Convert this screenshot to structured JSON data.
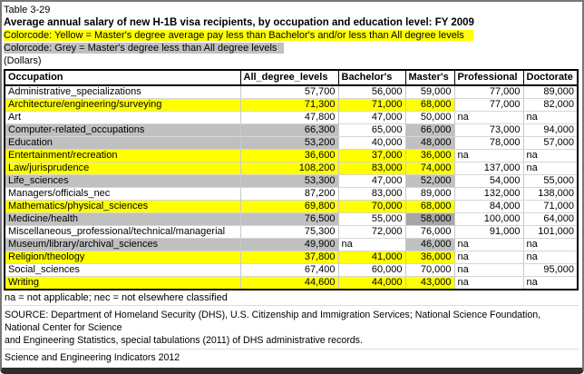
{
  "header": {
    "table_label": "Table 3-29",
    "title": "Average annual salary of new H-1B visa recipients, by occupation and education level: FY 2009",
    "colorcode_yellow": "Colorcode: Yellow = Master's degree average pay less than Bachelor's and/or less than All degree levels",
    "colorcode_grey": "Colorcode: Grey = Master's degree less than All degree levels",
    "units": "(Dollars)"
  },
  "colors": {
    "highlight_yellow": "#ffff00",
    "highlight_grey": "#c0c0c0",
    "highlight_dark_grey": "#a6a6a6"
  },
  "table": {
    "columns": [
      "Occupation",
      "All_degree_levels",
      "Bachelor's",
      "Master's",
      "Professional",
      "Doctorate"
    ],
    "rows": [
      {
        "occupation": "Administrative_specializations",
        "values": [
          "57,700",
          "56,000",
          "59,000",
          "77,000",
          "89,000"
        ],
        "bg": [
          "none",
          "none",
          "none",
          "none",
          "none",
          "none"
        ]
      },
      {
        "occupation": "Architecture/engineering/surveying",
        "values": [
          "71,300",
          "71,000",
          "68,000",
          "77,000",
          "82,000"
        ],
        "bg": [
          "yellow",
          "yellow",
          "yellow",
          "yellow",
          "none",
          "none"
        ]
      },
      {
        "occupation": "Art",
        "values": [
          "47,800",
          "47,000",
          "50,000",
          "na",
          "na"
        ],
        "bg": [
          "none",
          "none",
          "none",
          "none",
          "none",
          "none"
        ]
      },
      {
        "occupation": "Computer-related_occupations",
        "values": [
          "66,300",
          "65,000",
          "66,000",
          "73,000",
          "94,000"
        ],
        "bg": [
          "grey",
          "grey",
          "none",
          "grey",
          "none",
          "none"
        ]
      },
      {
        "occupation": "Education",
        "values": [
          "53,200",
          "40,000",
          "48,000",
          "78,000",
          "57,000"
        ],
        "bg": [
          "grey",
          "grey",
          "none",
          "grey",
          "none",
          "none"
        ]
      },
      {
        "occupation": "Entertainment/recreation",
        "values": [
          "36,600",
          "37,000",
          "36,000",
          "na",
          "na"
        ],
        "bg": [
          "yellow",
          "yellow",
          "yellow",
          "yellow",
          "none",
          "none"
        ]
      },
      {
        "occupation": "Law/jurisprudence",
        "values": [
          "108,200",
          "83,000",
          "74,000",
          "137,000",
          "na"
        ],
        "bg": [
          "yellow",
          "yellow",
          "yellow",
          "yellow",
          "none",
          "none"
        ]
      },
      {
        "occupation": "Life_sciences",
        "values": [
          "53,300",
          "47,000",
          "52,000",
          "54,000",
          "55,000"
        ],
        "bg": [
          "grey",
          "grey",
          "none",
          "grey",
          "none",
          "none"
        ]
      },
      {
        "occupation": "Managers/officials_nec",
        "values": [
          "87,200",
          "83,000",
          "89,000",
          "132,000",
          "138,000"
        ],
        "bg": [
          "none",
          "none",
          "none",
          "none",
          "none",
          "none"
        ]
      },
      {
        "occupation": "Mathematics/physical_sciences",
        "values": [
          "69,800",
          "70,000",
          "68,000",
          "84,000",
          "71,000"
        ],
        "bg": [
          "yellow",
          "yellow",
          "yellow",
          "yellow",
          "none",
          "none"
        ]
      },
      {
        "occupation": "Medicine/health",
        "values": [
          "76,500",
          "55,000",
          "58,000",
          "100,000",
          "64,000"
        ],
        "bg": [
          "grey",
          "grey",
          "none",
          "darkgrey",
          "none",
          "none"
        ]
      },
      {
        "occupation": "Miscellaneous_professional/technical/managerial",
        "values": [
          "75,300",
          "72,000",
          "76,000",
          "91,000",
          "101,000"
        ],
        "bg": [
          "none",
          "none",
          "none",
          "none",
          "none",
          "none"
        ]
      },
      {
        "occupation": "Museum/library/archival_sciences",
        "values": [
          "49,900",
          "na",
          "46,000",
          "na",
          "na"
        ],
        "bg": [
          "grey",
          "grey",
          "none",
          "grey",
          "none",
          "none"
        ]
      },
      {
        "occupation": "Religion/theology",
        "values": [
          "37,800",
          "41,000",
          "36,000",
          "na",
          "na"
        ],
        "bg": [
          "yellow",
          "yellow",
          "yellow",
          "yellow",
          "none",
          "none"
        ]
      },
      {
        "occupation": "Social_sciences",
        "values": [
          "67,400",
          "60,000",
          "70,000",
          "na",
          "95,000"
        ],
        "bg": [
          "none",
          "none",
          "none",
          "none",
          "none",
          "none"
        ]
      },
      {
        "occupation": "Writing",
        "values": [
          "44,600",
          "44,000",
          "43,000",
          "na",
          "na"
        ],
        "bg": [
          "yellow",
          "yellow",
          "yellow",
          "yellow",
          "none",
          "none"
        ]
      }
    ]
  },
  "footer": {
    "footnote": "na = not applicable; nec = not elsewhere classified",
    "source_lines": [
      "SOURCE: Department of Homeland Security (DHS), U.S. Citizenship and Immigration Services; National Science Foundation,",
      "National Center for Science",
      "and Engineering Statistics, special tabulations (2011) of DHS administrative records."
    ],
    "attribution": "Science and Engineering Indicators 2012"
  }
}
